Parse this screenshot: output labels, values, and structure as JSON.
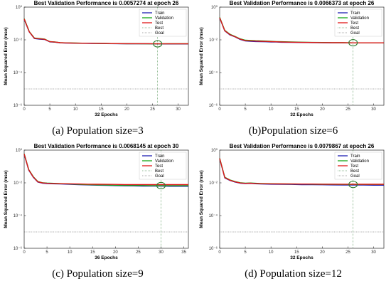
{
  "figure": {
    "captions": [
      "(a) Population size=3",
      "(b)Population size=6",
      "(c) Population size=9",
      "(d) Population size=12"
    ]
  },
  "chart_data": [
    {
      "type": "line",
      "title": "Best Validation Performance is 0.0057274 at epoch 26",
      "xlabel": "32 Epochs",
      "ylabel": "Mean Squared Error  (mse)",
      "yscale": "log",
      "xlim": [
        0,
        32
      ],
      "ylim": [
        1e-06,
        1
      ],
      "xticks": [
        0,
        5,
        10,
        15,
        20,
        25,
        30
      ],
      "yticks": [
        1e-06,
        0.0001,
        0.01,
        1
      ],
      "yticklabels": [
        "10⁻⁶",
        "10⁻⁴",
        "10⁻²",
        "10⁰"
      ],
      "legend_position": "top-right",
      "legend": [
        "Train",
        "Validation",
        "Test",
        "Best",
        "Goal"
      ],
      "colors": {
        "Train": "#1f1fb4",
        "Validation": "#18a818",
        "Test": "#e01818",
        "Best": "#2e7d32",
        "Goal": "#555555"
      },
      "x": [
        0,
        1,
        2,
        3,
        4,
        5,
        6,
        7,
        8,
        9,
        10,
        12,
        14,
        16,
        18,
        20,
        22,
        24,
        26,
        28,
        30,
        32
      ],
      "series": [
        {
          "name": "Train",
          "values": [
            0.18,
            0.03,
            0.012,
            0.011,
            0.0105,
            0.0075,
            0.0072,
            0.0066,
            0.0064,
            0.0063,
            0.0062,
            0.0061,
            0.006,
            0.0059,
            0.0058,
            0.00575,
            0.0057,
            0.0057,
            0.0056,
            0.0056,
            0.0056,
            0.0056
          ]
        },
        {
          "name": "Validation",
          "values": [
            0.2,
            0.032,
            0.013,
            0.012,
            0.011,
            0.0078,
            0.0074,
            0.0068,
            0.0066,
            0.0065,
            0.0064,
            0.0062,
            0.0061,
            0.006,
            0.0059,
            0.0058,
            0.0058,
            0.0057,
            0.0057,
            0.0058,
            0.0058,
            0.0058
          ]
        },
        {
          "name": "Test",
          "values": [
            0.19,
            0.031,
            0.0125,
            0.0115,
            0.0108,
            0.0077,
            0.0073,
            0.0067,
            0.0065,
            0.0064,
            0.0063,
            0.0062,
            0.0061,
            0.006,
            0.0059,
            0.0058,
            0.0058,
            0.0058,
            0.0057,
            0.0057,
            0.0057,
            0.0057
          ]
        }
      ],
      "best": {
        "epoch": 26,
        "value": 0.0057274
      },
      "goal": 1e-05
    },
    {
      "type": "line",
      "title": "Best Validation Performance is 0.0066373 at epoch 26",
      "xlabel": "32 Epochs",
      "ylabel": "Mean Squared Error  (mse)",
      "yscale": "log",
      "xlim": [
        0,
        32
      ],
      "ylim": [
        1e-06,
        1
      ],
      "xticks": [
        0,
        5,
        10,
        15,
        20,
        25,
        30
      ],
      "yticks": [
        1e-06,
        0.0001,
        0.01,
        1
      ],
      "yticklabels": [
        "10⁻⁶",
        "10⁻⁴",
        "10⁻²",
        "10⁰"
      ],
      "legend_position": "top-right",
      "legend": [
        "Train",
        "Validation",
        "Test",
        "Best",
        "Goal"
      ],
      "colors": {
        "Train": "#1f1fb4",
        "Validation": "#18a818",
        "Test": "#e01818",
        "Best": "#2e7d32",
        "Goal": "#555555"
      },
      "x": [
        0,
        1,
        2,
        3,
        4,
        5,
        6,
        7,
        8,
        9,
        10,
        11,
        12,
        14,
        16,
        18,
        20,
        22,
        24,
        26,
        28,
        30,
        32
      ],
      "series": [
        {
          "name": "Train",
          "values": [
            0.22,
            0.035,
            0.02,
            0.015,
            0.0105,
            0.0085,
            0.0082,
            0.0079,
            0.0078,
            0.0076,
            0.0074,
            0.0073,
            0.0071,
            0.007,
            0.0069,
            0.0068,
            0.0067,
            0.0066,
            0.0066,
            0.0065,
            0.0065,
            0.0065,
            0.0065
          ]
        },
        {
          "name": "Validation",
          "values": [
            0.24,
            0.038,
            0.022,
            0.016,
            0.0115,
            0.0095,
            0.0092,
            0.0089,
            0.0087,
            0.0084,
            0.0081,
            0.0079,
            0.0077,
            0.0074,
            0.0072,
            0.007,
            0.0069,
            0.0068,
            0.0067,
            0.0066,
            0.0066,
            0.0066,
            0.0066
          ]
        },
        {
          "name": "Test",
          "values": [
            0.23,
            0.036,
            0.021,
            0.0155,
            0.011,
            0.009,
            0.0087,
            0.0084,
            0.0082,
            0.008,
            0.0078,
            0.0076,
            0.0074,
            0.0072,
            0.007,
            0.0069,
            0.0068,
            0.0067,
            0.0067,
            0.0066,
            0.0066,
            0.0066,
            0.0066
          ]
        }
      ],
      "best": {
        "epoch": 26,
        "value": 0.0066373
      },
      "goal": 1e-05
    },
    {
      "type": "line",
      "title": "Best Validation Performance is 0.0068145 at epoch 30",
      "xlabel": "36 Epochs",
      "ylabel": "Mean Squared Error  (mse)",
      "yscale": "log",
      "xlim": [
        0,
        36
      ],
      "ylim": [
        1e-06,
        1
      ],
      "xticks": [
        0,
        5,
        10,
        15,
        20,
        25,
        30,
        35
      ],
      "yticks": [
        1e-06,
        0.0001,
        0.01,
        1
      ],
      "yticklabels": [
        "10⁻⁶",
        "10⁻⁴",
        "10⁻²",
        "10⁰"
      ],
      "legend_position": "top-right",
      "legend": [
        "Train",
        "Validation",
        "Test",
        "Best",
        "Goal"
      ],
      "colors": {
        "Train": "#1f1fb4",
        "Validation": "#18a818",
        "Test": "#e01818",
        "Best": "#2e7d32",
        "Goal": "#555555"
      },
      "x": [
        0,
        1,
        2,
        3,
        4,
        5,
        6,
        7,
        8,
        10,
        12,
        14,
        16,
        18,
        20,
        22,
        24,
        26,
        28,
        30,
        32,
        34,
        36
      ],
      "series": [
        {
          "name": "Train",
          "values": [
            0.55,
            0.06,
            0.022,
            0.011,
            0.0095,
            0.009,
            0.0088,
            0.0087,
            0.0086,
            0.0082,
            0.0078,
            0.0075,
            0.0072,
            0.007,
            0.0068,
            0.0066,
            0.0065,
            0.0064,
            0.0063,
            0.0063,
            0.0062,
            0.0062,
            0.0062
          ]
        },
        {
          "name": "Validation",
          "values": [
            0.6,
            0.065,
            0.024,
            0.012,
            0.0102,
            0.0097,
            0.0094,
            0.0092,
            0.009,
            0.0086,
            0.0082,
            0.0078,
            0.0075,
            0.0073,
            0.0071,
            0.007,
            0.0069,
            0.0069,
            0.0068,
            0.0068,
            0.0068,
            0.0068,
            0.0068
          ]
        },
        {
          "name": "Test",
          "values": [
            0.58,
            0.063,
            0.023,
            0.0115,
            0.0099,
            0.0094,
            0.0091,
            0.009,
            0.0089,
            0.0087,
            0.0085,
            0.0083,
            0.0082,
            0.0081,
            0.008,
            0.0079,
            0.0079,
            0.0079,
            0.0078,
            0.0078,
            0.0078,
            0.0078,
            0.0078
          ]
        }
      ],
      "best": {
        "epoch": 30,
        "value": 0.0068145
      },
      "goal": 1e-05
    },
    {
      "type": "line",
      "title": "Best Validation Performance is 0.0079867 at epoch 26",
      "xlabel": "32 Epochs",
      "ylabel": "Mean Squared Error  (mse)",
      "yscale": "log",
      "xlim": [
        0,
        32
      ],
      "ylim": [
        1e-06,
        1
      ],
      "xticks": [
        0,
        5,
        10,
        15,
        20,
        25,
        30
      ],
      "yticks": [
        1e-06,
        0.0001,
        0.01,
        1
      ],
      "yticklabels": [
        "10⁻⁶",
        "10⁻⁴",
        "10⁻²",
        "10⁰"
      ],
      "legend_position": "top-right",
      "legend": [
        "Train",
        "Validation",
        "Test",
        "Best",
        "Goal"
      ],
      "colors": {
        "Train": "#1f1fb4",
        "Validation": "#18a818",
        "Test": "#e01818",
        "Best": "#2e7d32",
        "Goal": "#555555"
      },
      "x": [
        0,
        1,
        2,
        3,
        4,
        5,
        6,
        7,
        8,
        10,
        12,
        14,
        16,
        18,
        20,
        22,
        24,
        26,
        28,
        30,
        32
      ],
      "series": [
        {
          "name": "Train",
          "values": [
            0.3,
            0.02,
            0.014,
            0.011,
            0.0095,
            0.009,
            0.0092,
            0.0088,
            0.0085,
            0.0083,
            0.0081,
            0.008,
            0.0078,
            0.0077,
            0.0076,
            0.0075,
            0.0074,
            0.0073,
            0.0073,
            0.0072,
            0.0072
          ]
        },
        {
          "name": "Validation",
          "values": [
            0.32,
            0.022,
            0.015,
            0.012,
            0.0102,
            0.0096,
            0.0098,
            0.0094,
            0.0091,
            0.0089,
            0.0087,
            0.0085,
            0.0084,
            0.0083,
            0.0082,
            0.0081,
            0.008,
            0.008,
            0.008,
            0.008,
            0.008
          ]
        },
        {
          "name": "Test",
          "values": [
            0.31,
            0.021,
            0.0145,
            0.0115,
            0.0098,
            0.0093,
            0.0095,
            0.0091,
            0.0089,
            0.0087,
            0.0086,
            0.0085,
            0.0084,
            0.0084,
            0.0083,
            0.0083,
            0.0083,
            0.0082,
            0.0082,
            0.0082,
            0.0082
          ]
        }
      ],
      "best": {
        "epoch": 26,
        "value": 0.0079867
      },
      "goal": 1e-05
    }
  ]
}
